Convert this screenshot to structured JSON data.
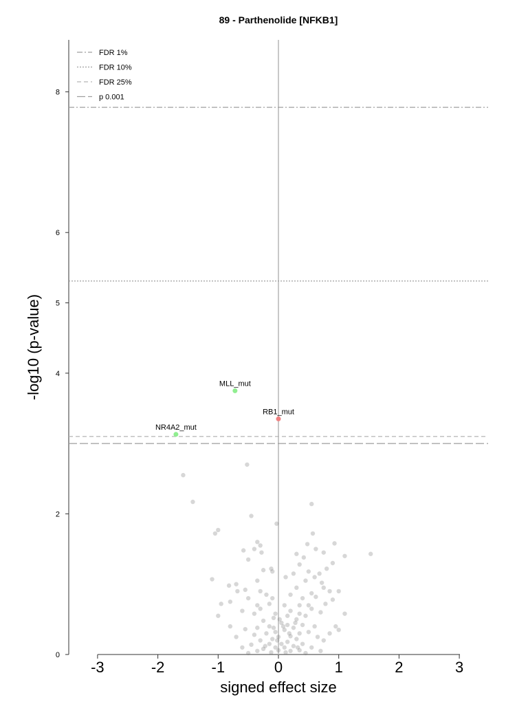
{
  "chart_data": {
    "type": "scatter",
    "title": "89 - Parthenolide [NFKB1]",
    "xlabel": "signed effect size",
    "ylabel": "-log10 (p-value)",
    "xlim": [
      -3.45,
      3.5
    ],
    "ylim": [
      0,
      8.9
    ],
    "xticks": [
      -3,
      -2,
      -1,
      0,
      1,
      2,
      3
    ],
    "xtick_labels": [
      "-3",
      "-2",
      "-1",
      "0",
      "1",
      "2",
      "3"
    ],
    "yticks": [
      0,
      2,
      4,
      5,
      6,
      8
    ],
    "ytick_labels": [
      "0",
      "2",
      "4",
      "5",
      "6",
      "8"
    ],
    "grid": false,
    "legend_position": "top-left",
    "thresholds": [
      {
        "name": "FDR 1%",
        "y": 7.78,
        "style": "dashdot",
        "color": "#9e9e9e"
      },
      {
        "name": "FDR 10%",
        "y": 5.31,
        "style": "dotted",
        "color": "#9e9e9e"
      },
      {
        "name": "FDR 25%",
        "y": 3.1,
        "style": "dashed",
        "color": "#b3b3b3"
      },
      {
        "name": "p 0.001",
        "y": 3.0,
        "style": "longdash",
        "color": "#9e9e9e"
      }
    ],
    "highlighted": [
      {
        "label": "MLL_mut",
        "x": -0.72,
        "y": 3.75,
        "color": "#90ee90"
      },
      {
        "label": "RB1_mut",
        "x": 0.0,
        "y": 3.35,
        "color": "#f08080"
      },
      {
        "label": "NR4A2_mut",
        "x": -1.7,
        "y": 3.13,
        "color": "#90ee90"
      }
    ],
    "background_points": [
      [
        -0.52,
        2.7
      ],
      [
        -1.58,
        2.55
      ],
      [
        -1.42,
        2.17
      ],
      [
        0.55,
        2.14
      ],
      [
        -0.45,
        1.97
      ],
      [
        -0.03,
        1.86
      ],
      [
        -1.0,
        1.77
      ],
      [
        -1.05,
        1.72
      ],
      [
        0.57,
        1.72
      ],
      [
        -0.35,
        1.6
      ],
      [
        -0.3,
        1.55
      ],
      [
        0.48,
        1.57
      ],
      [
        0.93,
        1.58
      ],
      [
        1.53,
        1.43
      ],
      [
        -0.58,
        1.48
      ],
      [
        -0.4,
        1.5
      ],
      [
        -0.28,
        1.45
      ],
      [
        0.62,
        1.5
      ],
      [
        0.75,
        1.45
      ],
      [
        1.1,
        1.4
      ],
      [
        0.3,
        1.43
      ],
      [
        -0.5,
        1.35
      ],
      [
        0.42,
        1.38
      ],
      [
        0.9,
        1.3
      ],
      [
        -0.25,
        1.2
      ],
      [
        0.35,
        1.28
      ],
      [
        0.5,
        1.18
      ],
      [
        0.68,
        1.15
      ],
      [
        0.8,
        1.22
      ],
      [
        -0.12,
        1.22
      ],
      [
        -0.1,
        1.18
      ],
      [
        -1.1,
        1.07
      ],
      [
        0.6,
        1.1
      ],
      [
        0.45,
        1.05
      ],
      [
        0.12,
        1.1
      ],
      [
        0.25,
        1.15
      ],
      [
        -0.35,
        1.05
      ],
      [
        -0.82,
        0.98
      ],
      [
        -0.7,
        1.0
      ],
      [
        0.72,
        1.02
      ],
      [
        -0.55,
        0.92
      ],
      [
        0.3,
        0.95
      ],
      [
        0.85,
        0.9
      ],
      [
        0.75,
        0.95
      ],
      [
        -0.3,
        0.9
      ],
      [
        -0.68,
        0.9
      ],
      [
        0.55,
        0.87
      ],
      [
        1.0,
        0.9
      ],
      [
        -0.5,
        0.8
      ],
      [
        0.62,
        0.82
      ],
      [
        -0.2,
        0.85
      ],
      [
        -0.1,
        0.8
      ],
      [
        0.4,
        0.8
      ],
      [
        0.2,
        0.85
      ],
      [
        -0.95,
        0.72
      ],
      [
        0.9,
        0.78
      ],
      [
        0.78,
        0.72
      ],
      [
        -0.8,
        0.75
      ],
      [
        0.35,
        0.7
      ],
      [
        -0.35,
        0.7
      ],
      [
        -0.3,
        0.65
      ],
      [
        0.5,
        0.7
      ],
      [
        -0.6,
        0.62
      ],
      [
        0.55,
        0.65
      ],
      [
        0.1,
        0.7
      ],
      [
        -0.15,
        0.72
      ],
      [
        1.1,
        0.58
      ],
      [
        -1.0,
        0.55
      ],
      [
        0.35,
        0.58
      ],
      [
        0.7,
        0.6
      ],
      [
        -0.4,
        0.58
      ],
      [
        0.45,
        0.55
      ],
      [
        0.15,
        0.55
      ],
      [
        -0.05,
        0.58
      ],
      [
        0.2,
        0.62
      ],
      [
        -0.08,
        0.52
      ],
      [
        0.3,
        0.5
      ],
      [
        -0.25,
        0.48
      ],
      [
        0.05,
        0.45
      ],
      [
        0.15,
        0.42
      ],
      [
        -0.15,
        0.4
      ],
      [
        0.4,
        0.42
      ],
      [
        -0.35,
        0.38
      ],
      [
        0.25,
        0.38
      ],
      [
        0.6,
        0.4
      ],
      [
        -0.55,
        0.36
      ],
      [
        0.1,
        0.35
      ],
      [
        -0.05,
        0.32
      ],
      [
        0.35,
        0.3
      ],
      [
        -0.2,
        0.3
      ],
      [
        0.5,
        0.32
      ],
      [
        -0.4,
        0.28
      ],
      [
        0.2,
        0.26
      ],
      [
        0.0,
        0.25
      ],
      [
        -0.1,
        0.22
      ],
      [
        0.3,
        0.22
      ],
      [
        0.65,
        0.25
      ],
      [
        -0.3,
        0.2
      ],
      [
        0.15,
        0.18
      ],
      [
        0.05,
        0.15
      ],
      [
        -0.15,
        0.15
      ],
      [
        0.4,
        0.15
      ],
      [
        -0.45,
        0.14
      ],
      [
        0.25,
        0.12
      ],
      [
        0.1,
        0.1
      ],
      [
        -0.05,
        0.1
      ],
      [
        0.55,
        0.1
      ],
      [
        -0.25,
        0.08
      ],
      [
        0.0,
        0.06
      ],
      [
        0.2,
        0.05
      ],
      [
        -0.35,
        0.05
      ],
      [
        0.35,
        0.06
      ],
      [
        0.12,
        0.03
      ],
      [
        -0.12,
        0.03
      ],
      [
        0.45,
        0.02
      ],
      [
        -0.5,
        0.02
      ],
      [
        0.7,
        0.05
      ],
      [
        -0.6,
        0.1
      ],
      [
        0.75,
        0.2
      ],
      [
        -0.7,
        0.25
      ],
      [
        0.85,
        0.3
      ],
      [
        -0.8,
        0.4
      ],
      [
        0.95,
        0.4
      ],
      [
        1.0,
        0.35
      ],
      [
        0.08,
        0.4
      ],
      [
        -0.02,
        0.2
      ],
      [
        0.18,
        0.3
      ],
      [
        -0.22,
        0.12
      ],
      [
        0.28,
        0.45
      ],
      [
        0.02,
        0.5
      ],
      [
        0.32,
        0.1
      ],
      [
        -0.08,
        0.38
      ]
    ]
  }
}
